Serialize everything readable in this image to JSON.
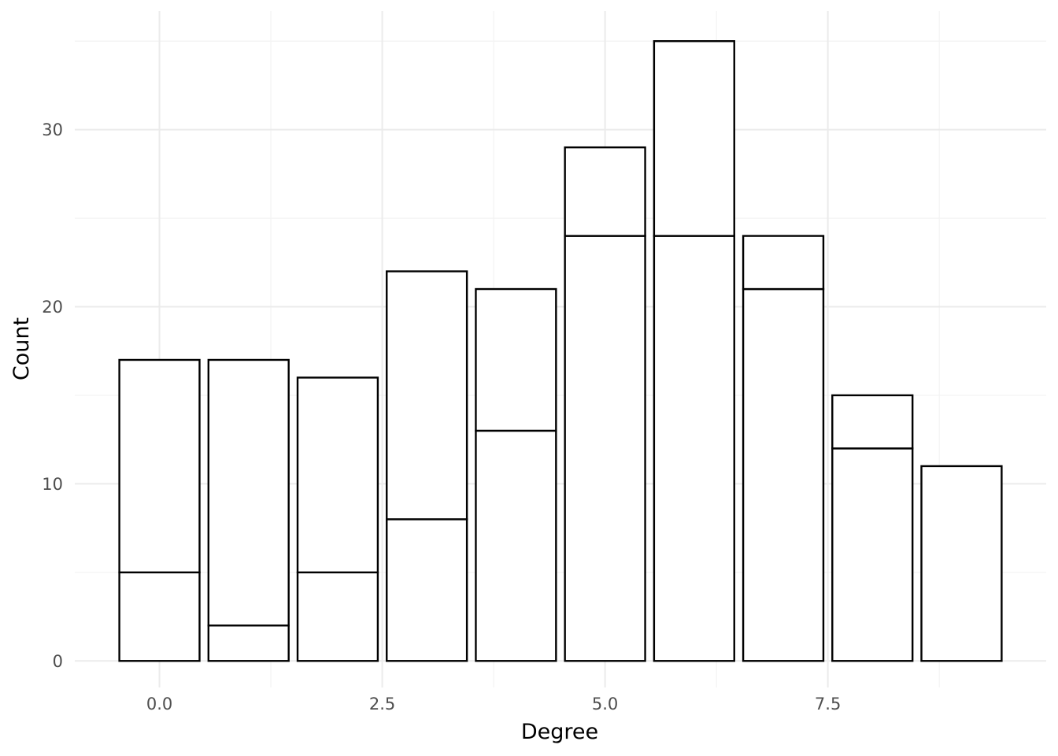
{
  "chart_data": {
    "type": "bar",
    "xlabel": "Degree",
    "ylabel": "Count",
    "x": [
      0,
      1,
      2,
      3,
      4,
      5,
      6,
      7,
      8,
      9
    ],
    "series": [
      {
        "values": [
          5,
          2,
          5,
          8,
          13,
          24,
          24,
          21,
          12,
          11
        ]
      },
      {
        "values": [
          12,
          15,
          11,
          14,
          8,
          5,
          11,
          3,
          3,
          0
        ]
      }
    ],
    "stacked": true,
    "totals": [
      17,
      17,
      16,
      22,
      21,
      29,
      35,
      24,
      15,
      11
    ],
    "xlim": [
      -0.95,
      9.95
    ],
    "ylim": [
      -1.5,
      36.7
    ],
    "x_ticks": [
      0.0,
      2.5,
      5.0,
      7.5
    ],
    "x_tick_labels": [
      "0.0",
      "2.5",
      "5.0",
      "7.5"
    ],
    "y_ticks": [
      0,
      10,
      20,
      30
    ],
    "y_tick_labels": [
      "0",
      "10",
      "20",
      "30"
    ],
    "grid": true,
    "legend": "none",
    "colors": {
      "bar_fill": "#ffffff",
      "bar_outline": "#000000",
      "grid": "#ebebeb"
    }
  }
}
